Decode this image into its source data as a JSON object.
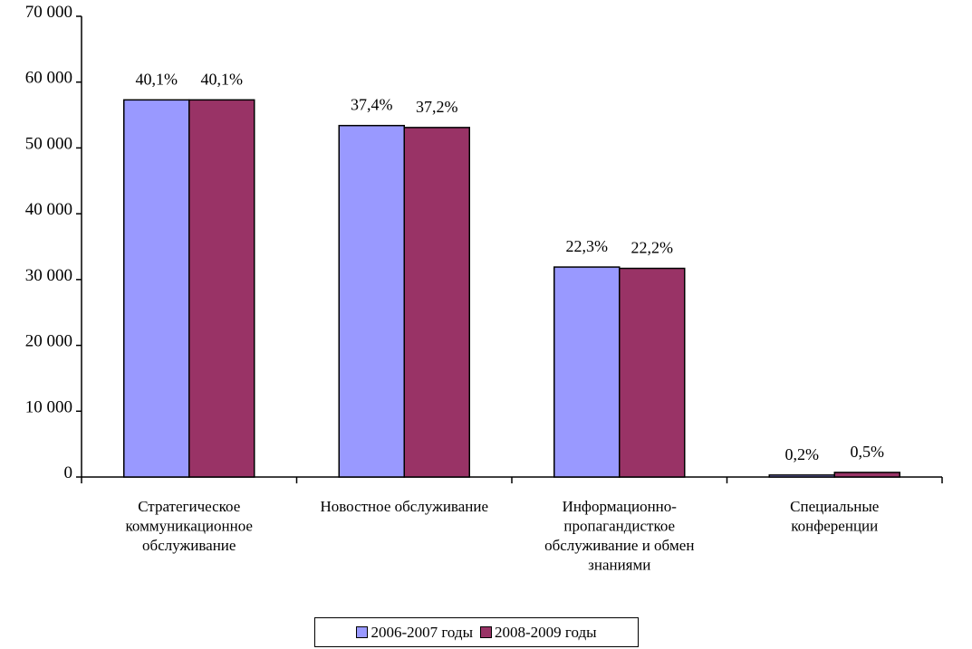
{
  "chart_data": {
    "type": "bar",
    "categories": [
      [
        "Стратегическое",
        "коммуникационное",
        "обслуживание"
      ],
      [
        "Новостное обслуживание"
      ],
      [
        "Информационно-",
        "пропагандисткое",
        "обслуживание и обмен",
        "знаниями"
      ],
      [
        "Специальные",
        "конференции"
      ]
    ],
    "series": [
      {
        "name": "2006-2007 годы",
        "color": "#9999ff",
        "values": [
          57300,
          53400,
          31900,
          300
        ],
        "labels": [
          "40,1%",
          "37,4%",
          "22,3%",
          "0,2%"
        ]
      },
      {
        "name": "2008-2009 годы",
        "color": "#993366",
        "values": [
          57300,
          53100,
          31700,
          700
        ],
        "labels": [
          "40,1%",
          "37,2%",
          "22,2%",
          "0,5%"
        ]
      }
    ],
    "ylim": [
      0,
      70000
    ],
    "yticks": [
      0,
      10000,
      20000,
      30000,
      40000,
      50000,
      60000,
      70000
    ],
    "ytick_labels": [
      "0",
      "10 000",
      "20 000",
      "30 000",
      "40 000",
      "50 000",
      "60 000",
      "70 000"
    ],
    "grid": false,
    "legend_position": "bottom"
  }
}
